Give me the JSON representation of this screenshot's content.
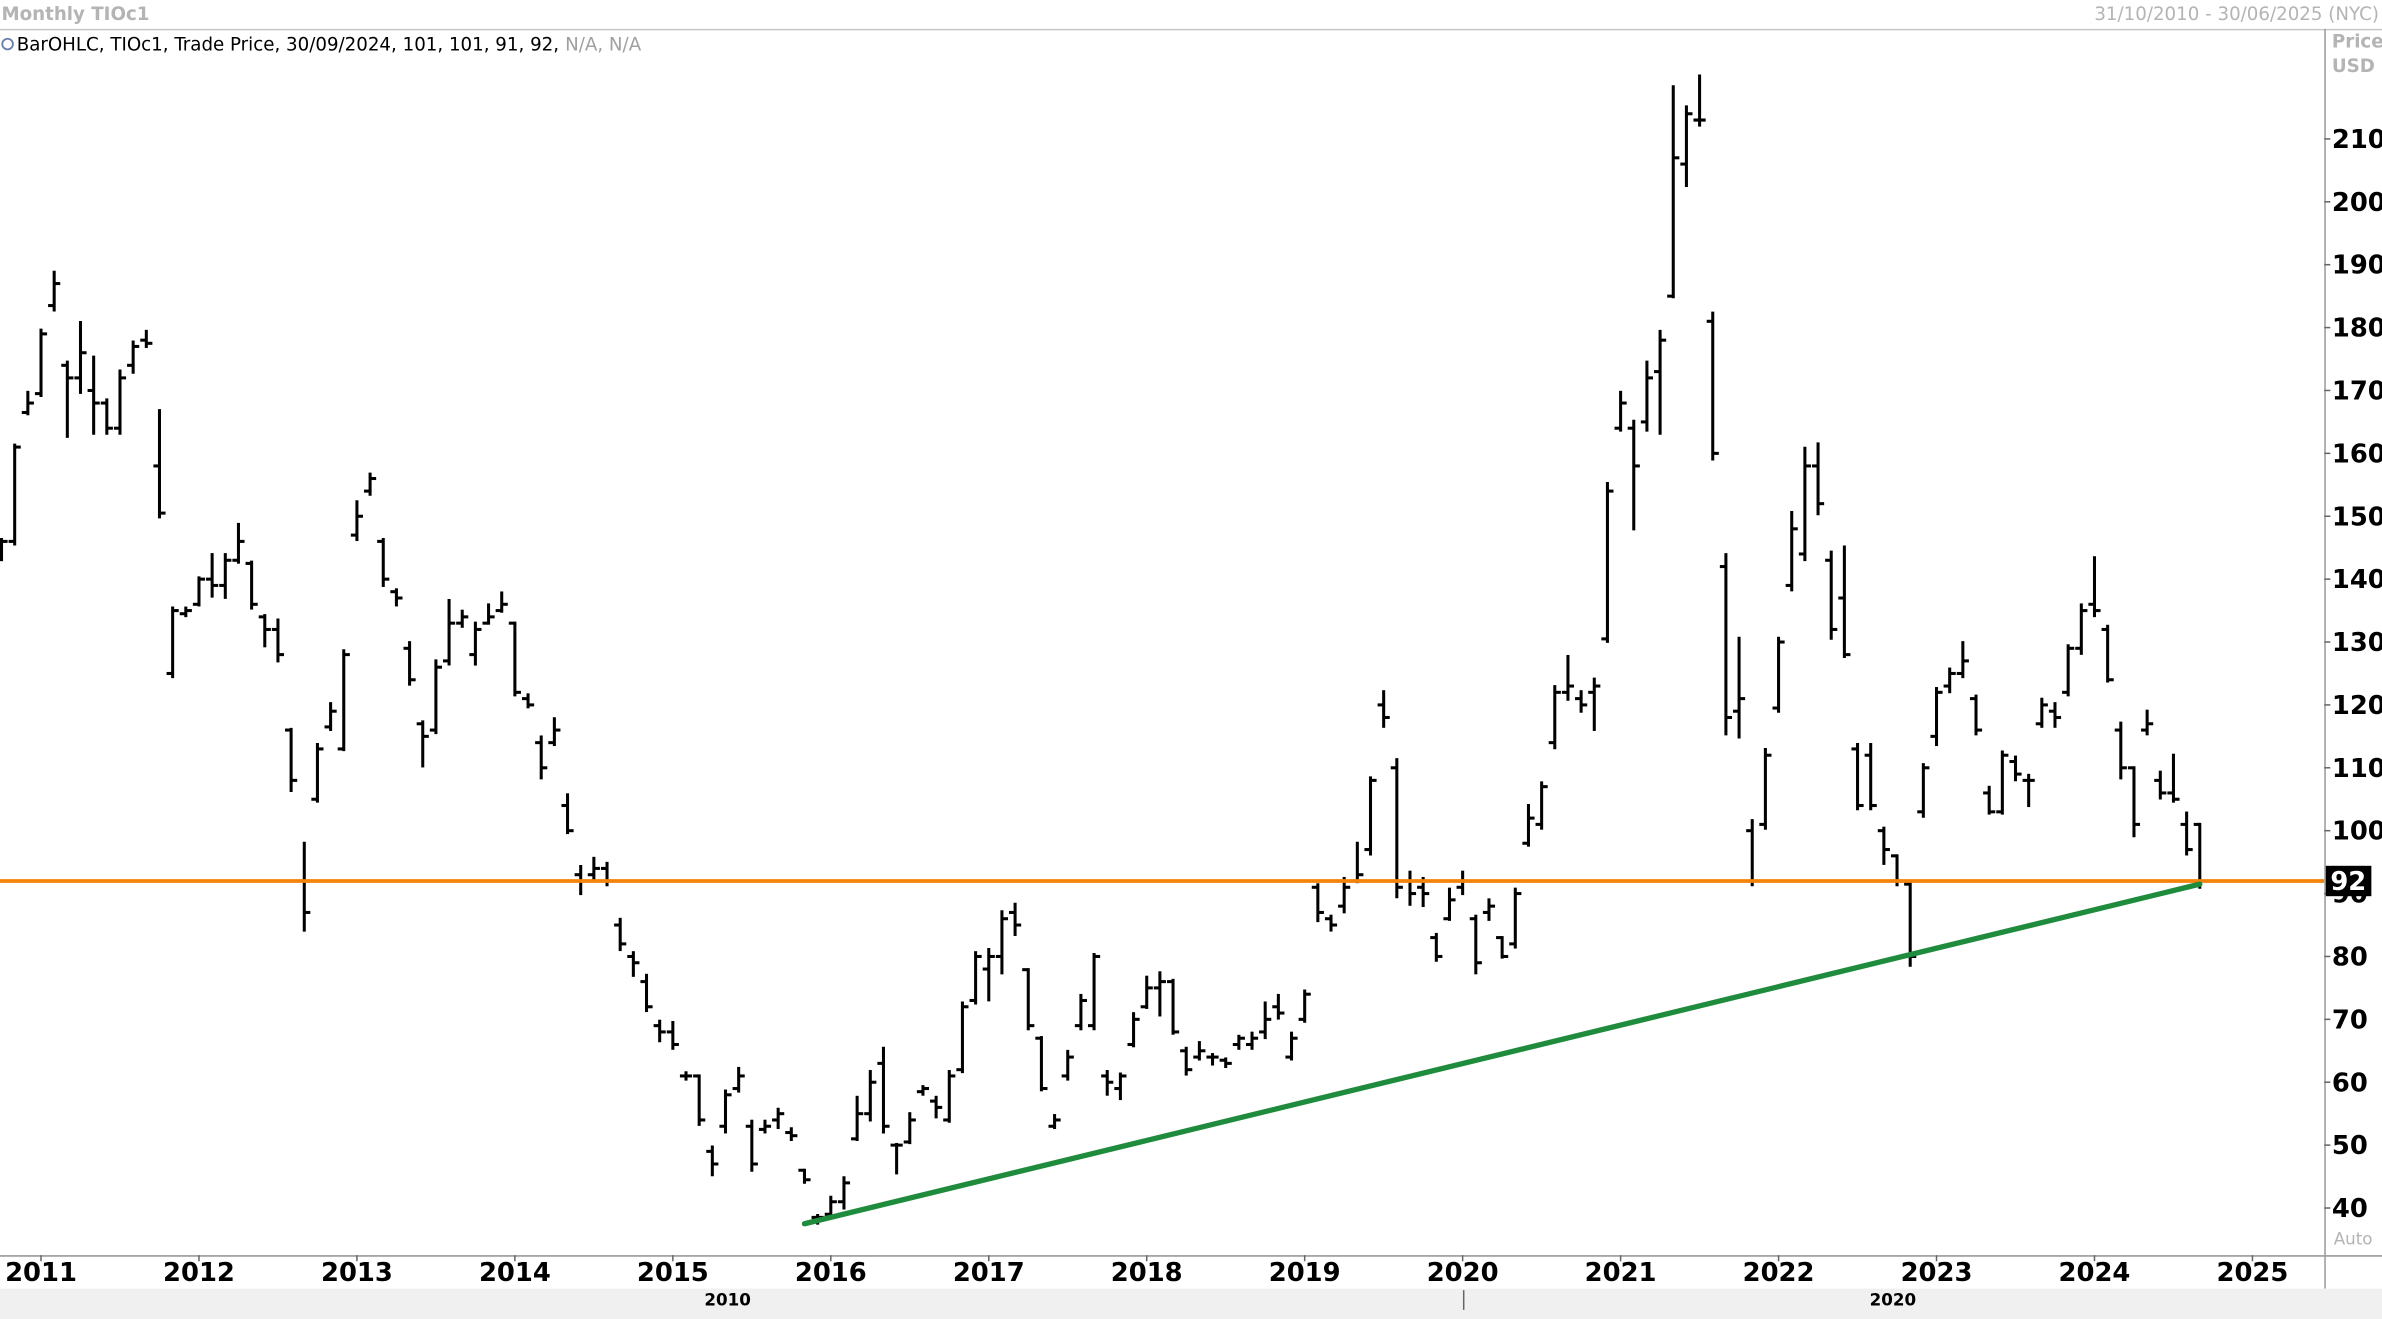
{
  "chart_data": {
    "type": "ohlc",
    "title": "Monthly TIOc1",
    "date_range": "31/10/2010 - 30/06/2025 (NYC)",
    "legend": "BarOHLC, TIOc1, Trade Price, 30/09/2024, 101, 101, 91, 92,",
    "legend_na": "N/A, N/A",
    "y_axis_label": [
      "Price",
      "USD"
    ],
    "scale_mode": "Auto",
    "decade_labels": [
      "2010",
      "2020"
    ],
    "color": "#000000",
    "ylim": [
      32.5,
      227.5
    ],
    "yticks": [
      40,
      50,
      60,
      70,
      80,
      90,
      100,
      110,
      120,
      130,
      140,
      150,
      160,
      170,
      180,
      190,
      200,
      210
    ],
    "grid": false,
    "reference_line": {
      "value": 92,
      "color": "#f5820a"
    },
    "trendline": {
      "color": "#1f8b3c",
      "start_index": 61,
      "start_value": 37.5,
      "end_index": 167,
      "end_value": 91.5
    },
    "categories": [
      null,
      null,
      null,
      "2011",
      null,
      null,
      null,
      null,
      null,
      null,
      null,
      null,
      null,
      null,
      null,
      "2012",
      null,
      null,
      null,
      null,
      null,
      null,
      null,
      null,
      null,
      null,
      null,
      "2013",
      null,
      null,
      null,
      null,
      null,
      null,
      null,
      null,
      null,
      null,
      null,
      "2014",
      null,
      null,
      null,
      null,
      null,
      null,
      null,
      null,
      null,
      null,
      null,
      "2015",
      null,
      null,
      null,
      null,
      null,
      null,
      null,
      null,
      null,
      null,
      null,
      "2016",
      null,
      null,
      null,
      null,
      null,
      null,
      null,
      null,
      null,
      null,
      null,
      "2017",
      null,
      null,
      null,
      null,
      null,
      null,
      null,
      null,
      null,
      null,
      null,
      "2018",
      null,
      null,
      null,
      null,
      null,
      null,
      null,
      null,
      null,
      null,
      null,
      "2019",
      null,
      null,
      null,
      null,
      null,
      null,
      null,
      null,
      null,
      null,
      null,
      "2020",
      null,
      null,
      null,
      null,
      null,
      null,
      null,
      null,
      null,
      null,
      null,
      "2021",
      null,
      null,
      null,
      null,
      null,
      null,
      null,
      null,
      null,
      null,
      null,
      "2022",
      null,
      null,
      null,
      null,
      null,
      null,
      null,
      null,
      null,
      null,
      null,
      "2023",
      null,
      null,
      null,
      null,
      null,
      null,
      null,
      null,
      null,
      null,
      null,
      "2024",
      null,
      null,
      null,
      null,
      null,
      null,
      null,
      null,
      null,
      null,
      null,
      "2025"
    ],
    "ohlc": [
      [
        144,
        146.3,
        143.1,
        146
      ],
      [
        146,
        161.3,
        145.6,
        161
      ],
      [
        166.5,
        169.7,
        166.3,
        168
      ],
      [
        169.5,
        179.6,
        169.2,
        179
      ],
      [
        183.5,
        188.8,
        182.8,
        187
      ],
      [
        174,
        174.5,
        162.7,
        172
      ],
      [
        172,
        180.8,
        169.7,
        176
      ],
      [
        170,
        175.3,
        163.2,
        168
      ],
      [
        168,
        168.5,
        163.2,
        164
      ],
      [
        164,
        173.1,
        163.2,
        172
      ],
      [
        174,
        177.7,
        172.9,
        177
      ],
      [
        178,
        179.4,
        177,
        177.5
      ],
      [
        158,
        166.8,
        149.9,
        150.5
      ],
      [
        125,
        135.4,
        124.5,
        135
      ],
      [
        134.5,
        135.4,
        134.2,
        135
      ],
      [
        136,
        140.2,
        135.9,
        140
      ],
      [
        140,
        143.9,
        137.3,
        139
      ],
      [
        139,
        143.9,
        137.1,
        143
      ],
      [
        143,
        148.7,
        142.7,
        146
      ],
      [
        142.5,
        142.7,
        135.4,
        136
      ],
      [
        134,
        134.2,
        129.4,
        132
      ],
      [
        132,
        133.5,
        127,
        128
      ],
      [
        116,
        116.1,
        106.4,
        108
      ],
      [
        92,
        98,
        84.2,
        87
      ],
      [
        105,
        113.7,
        104.7,
        113
      ],
      [
        116.5,
        120.2,
        116.1,
        119
      ],
      [
        113,
        128.6,
        112.9,
        128
      ],
      [
        147,
        152.3,
        146.3,
        150
      ],
      [
        154,
        156.7,
        153.5,
        156
      ],
      [
        146,
        146.3,
        139,
        140
      ],
      [
        138,
        138.3,
        135.9,
        137
      ],
      [
        129,
        129.9,
        123.3,
        124
      ],
      [
        117,
        117.3,
        110.3,
        115
      ],
      [
        116,
        127,
        115.6,
        126
      ],
      [
        127,
        136.6,
        126.5,
        133
      ],
      [
        133,
        134.9,
        132.5,
        134
      ],
      [
        128,
        133,
        126.5,
        132
      ],
      [
        133,
        135.9,
        133,
        134
      ],
      [
        135,
        137.8,
        134.9,
        136
      ],
      [
        133,
        133,
        121.6,
        122
      ],
      [
        121,
        121.6,
        119.7,
        120
      ],
      [
        114,
        114.9,
        108.4,
        110
      ],
      [
        114,
        117.8,
        113.7,
        116
      ],
      [
        104,
        105.7,
        99.7,
        100
      ],
      [
        93,
        94.3,
        90,
        92
      ],
      [
        93,
        95.6,
        92.4,
        94
      ],
      [
        94,
        94.8,
        91.4,
        92
      ],
      [
        85,
        85.9,
        81.1,
        82
      ],
      [
        80,
        80.6,
        77,
        79
      ],
      [
        76,
        77,
        71.4,
        72
      ],
      [
        69,
        69.7,
        66.6,
        68
      ],
      [
        68,
        69.5,
        65.4,
        66
      ],
      [
        61,
        61.5,
        60.5,
        61
      ],
      [
        61,
        61,
        53.3,
        54
      ],
      [
        49,
        49.7,
        45.3,
        47
      ],
      [
        53,
        58.6,
        52.1,
        58
      ],
      [
        59,
        62.2,
        58.6,
        61
      ],
      [
        53,
        53.8,
        46,
        47
      ],
      [
        52.5,
        53.8,
        52.1,
        53
      ],
      [
        54,
        55.7,
        52.8,
        55
      ],
      [
        52,
        52.6,
        50.9,
        51.5
      ],
      [
        46,
        46,
        44.1,
        44.5
      ],
      [
        38.5,
        38.8,
        37.6,
        38.5
      ],
      [
        39,
        41.7,
        38.8,
        41
      ],
      [
        41,
        44.8,
        40,
        44
      ],
      [
        51,
        57.6,
        50.9,
        55
      ],
      [
        55,
        61.7,
        54,
        60
      ],
      [
        63,
        65.4,
        52.1,
        53
      ],
      [
        50,
        50.1,
        45.6,
        50
      ],
      [
        50.5,
        55,
        50.4,
        54
      ],
      [
        58.5,
        59.3,
        58.1,
        59
      ],
      [
        57,
        57.6,
        54.5,
        56
      ],
      [
        54,
        61.7,
        53.8,
        61
      ],
      [
        62,
        72.6,
        61.7,
        72
      ],
      [
        73,
        80.6,
        72.6,
        80
      ],
      [
        78,
        81.1,
        73.1,
        80
      ],
      [
        80,
        87.1,
        77.4,
        86
      ],
      [
        87,
        88.3,
        83.5,
        85
      ],
      [
        77.9,
        77.9,
        68.5,
        69
      ],
      [
        67,
        67.1,
        58.8,
        59
      ],
      [
        53,
        54.7,
        52.8,
        54
      ],
      [
        61,
        64.9,
        60.5,
        64
      ],
      [
        69,
        73.8,
        68.5,
        73
      ],
      [
        69,
        80.3,
        68.5,
        80
      ],
      [
        61,
        61.7,
        58.1,
        60
      ],
      [
        59,
        61.3,
        57.4,
        61
      ],
      [
        66,
        70.9,
        65.8,
        70
      ],
      [
        72,
        76.7,
        71.9,
        75
      ],
      [
        75,
        77.4,
        70.7,
        76
      ],
      [
        76,
        76.2,
        67.8,
        68
      ],
      [
        65,
        65.4,
        61.3,
        62
      ],
      [
        64,
        66.3,
        63.7,
        65
      ],
      [
        64,
        64.4,
        62.9,
        64
      ],
      [
        63.5,
        63.7,
        62.5,
        63
      ],
      [
        66,
        67.3,
        65.4,
        67
      ],
      [
        66,
        67.8,
        65.4,
        67
      ],
      [
        68,
        72.6,
        67.1,
        70
      ],
      [
        72,
        73.8,
        70.2,
        71
      ],
      [
        64,
        67.8,
        63.7,
        67
      ],
      [
        70,
        74.5,
        69.7,
        74
      ],
      [
        91,
        91.4,
        85.7,
        87
      ],
      [
        86,
        86.4,
        84.2,
        85
      ],
      [
        88,
        92.4,
        87.1,
        91
      ],
      [
        92,
        98,
        91.9,
        93
      ],
      [
        97,
        108.4,
        96.3,
        108
      ],
      [
        120,
        122.1,
        116.6,
        118
      ],
      [
        110,
        111.3,
        89.5,
        91
      ],
      [
        92,
        93.4,
        88.3,
        90
      ],
      [
        91,
        92.4,
        88.1,
        90
      ],
      [
        83,
        83.5,
        79.4,
        80
      ],
      [
        86,
        90.7,
        85.9,
        89
      ],
      [
        91,
        93.4,
        90,
        92
      ],
      [
        86,
        86.4,
        77.4,
        79
      ],
      [
        87,
        89,
        85.9,
        88
      ],
      [
        83,
        83,
        79.9,
        80
      ],
      [
        82,
        90.7,
        81.5,
        90
      ],
      [
        98,
        104,
        97.7,
        102
      ],
      [
        101,
        107.6,
        100.4,
        107
      ],
      [
        114,
        122.9,
        113.2,
        122
      ],
      [
        122,
        127.7,
        120.9,
        123
      ],
      [
        121,
        122.1,
        119,
        120
      ],
      [
        122,
        124.1,
        116.1,
        123
      ],
      [
        130.5,
        155.2,
        130.1,
        154
      ],
      [
        164,
        169.7,
        163.7,
        168
      ],
      [
        164,
        165.1,
        148,
        158
      ],
      [
        165,
        174.5,
        163.7,
        172
      ],
      [
        173,
        179.4,
        163.2,
        178
      ],
      [
        185,
        218.3,
        184.9,
        207
      ],
      [
        206,
        215.1,
        202.6,
        214
      ],
      [
        213,
        220,
        212.2,
        213
      ],
      [
        181,
        182.3,
        159.1,
        160
      ],
      [
        142,
        143.9,
        115.4,
        118
      ],
      [
        119,
        130.6,
        114.9,
        121
      ],
      [
        100,
        101.6,
        91.4,
        92
      ],
      [
        101,
        112.9,
        100.4,
        112
      ],
      [
        119.5,
        130.6,
        119,
        130
      ],
      [
        139,
        150.6,
        138.3,
        148
      ],
      [
        144,
        160.8,
        143.1,
        158
      ],
      [
        158,
        161.5,
        150.4,
        152
      ],
      [
        143,
        144.3,
        130.6,
        132
      ],
      [
        137,
        145.1,
        127.7,
        128
      ],
      [
        113,
        113.7,
        103.5,
        104
      ],
      [
        112,
        113.7,
        103.5,
        104
      ],
      [
        100,
        100.4,
        94.8,
        97
      ],
      [
        96,
        96,
        91.4,
        92
      ],
      [
        91.5,
        91.9,
        78.6,
        80
      ],
      [
        103,
        110.5,
        102.3,
        110
      ],
      [
        115,
        122.6,
        113.7,
        122
      ],
      [
        123,
        125.7,
        122.1,
        125
      ],
      [
        125,
        129.9,
        124.5,
        127
      ],
      [
        121,
        121.4,
        115.4,
        116
      ],
      [
        106,
        106.9,
        102.8,
        103
      ],
      [
        103,
        112.5,
        102.8,
        112
      ],
      [
        111,
        111.7,
        108.1,
        109
      ],
      [
        108,
        108.8,
        104,
        108
      ],
      [
        117,
        120.9,
        116.6,
        120
      ],
      [
        119,
        120.2,
        116.6,
        118
      ],
      [
        122,
        129.4,
        121.6,
        129
      ],
      [
        129,
        135.9,
        128.2,
        135
      ],
      [
        136,
        143.4,
        134.2,
        135
      ],
      [
        132,
        132.5,
        123.8,
        124
      ],
      [
        116,
        117.1,
        108.4,
        110
      ],
      [
        110,
        110,
        99.2,
        101
      ],
      [
        116,
        119,
        115.4,
        117
      ],
      [
        108,
        109.3,
        105.2,
        106
      ],
      [
        106,
        112,
        104.7,
        105
      ],
      [
        101,
        102.8,
        96.3,
        97
      ],
      [
        101,
        101,
        91,
        92
      ],
      null,
      null,
      null,
      null
    ]
  }
}
